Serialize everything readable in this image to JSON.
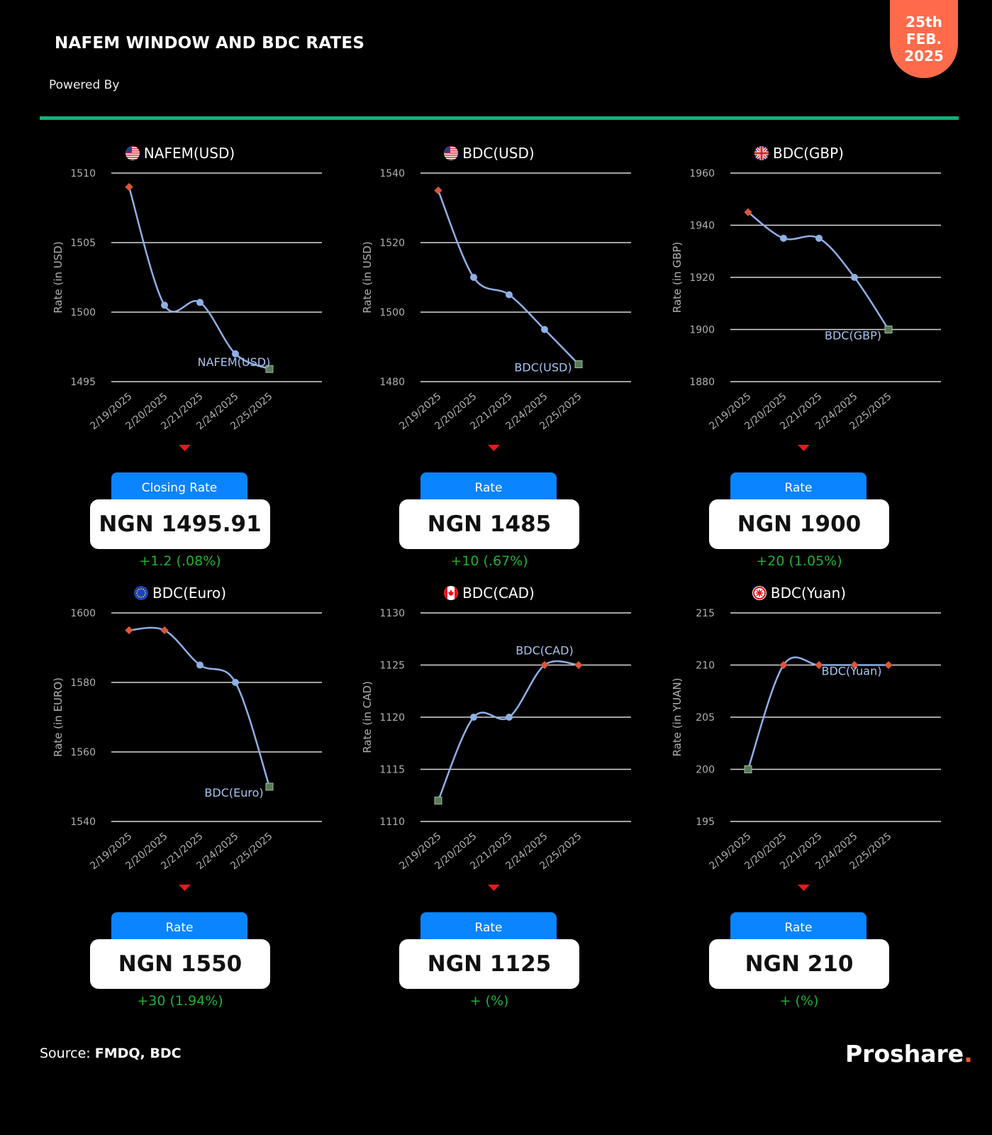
{
  "header": {
    "title": "NAFEM WINDOW AND BDC RATES",
    "powered_by": "Powered By",
    "date_line1": "25th",
    "date_line2": "FEB.",
    "date_line3": "2025"
  },
  "footer": {
    "source_label": "Source:",
    "source_value": "FMDQ, BDC",
    "logo_text": "Proshare",
    "logo_dot": "."
  },
  "colors": {
    "accent_green": "#0db37a",
    "badge": "#ff6b4a",
    "rate_tab": "#0a84ff",
    "line": "#8fb0e6",
    "change": "#1db233"
  },
  "chart_data": [
    {
      "type": "line",
      "title": "NAFEM(USD)",
      "flag": "us-flag-icon",
      "ylabel": "Rate (in USD)",
      "x": [
        "2/19/2025",
        "2/20/2025",
        "2/21/2025",
        "2/24/2025",
        "2/25/2025"
      ],
      "series": [
        {
          "name": "NAFEM(USD)",
          "values": [
            1509,
            1500.5,
            1500.7,
            1497,
            1495.91
          ]
        }
      ],
      "ylim": [
        1495,
        1510
      ],
      "yticks": [
        1495,
        1500,
        1505,
        1510
      ],
      "rate_label": "Closing Rate",
      "rate_value": "NGN 1495.91",
      "change": "+1.2 (.08%)"
    },
    {
      "type": "line",
      "title": "BDC(USD)",
      "flag": "us-flag-icon",
      "ylabel": "Rate (in USD)",
      "x": [
        "2/19/2025",
        "2/20/2025",
        "2/21/2025",
        "2/24/2025",
        "2/25/2025"
      ],
      "series": [
        {
          "name": "BDC(USD)",
          "values": [
            1535,
            1510,
            1505,
            1495,
            1485
          ]
        }
      ],
      "ylim": [
        1480,
        1540
      ],
      "yticks": [
        1480,
        1500,
        1520,
        1540
      ],
      "rate_label": "Rate",
      "rate_value": "NGN 1485",
      "change": "+10 (.67%)"
    },
    {
      "type": "line",
      "title": "BDC(GBP)",
      "flag": "uk-flag-icon",
      "ylabel": "Rate (in GBP)",
      "x": [
        "2/19/2025",
        "2/20/2025",
        "2/21/2025",
        "2/24/2025",
        "2/25/2025"
      ],
      "series": [
        {
          "name": "BDC(GBP)",
          "values": [
            1945,
            1935,
            1935,
            1920,
            1900
          ]
        }
      ],
      "ylim": [
        1880,
        1960
      ],
      "yticks": [
        1880,
        1900,
        1920,
        1940,
        1960
      ],
      "rate_label": "Rate",
      "rate_value": "NGN 1900",
      "change": "+20 (1.05%)"
    },
    {
      "type": "line",
      "title": "BDC(Euro)",
      "flag": "eu-flag-icon",
      "ylabel": "Rate (in EURO)",
      "x": [
        "2/19/2025",
        "2/20/2025",
        "2/21/2025",
        "2/24/2025",
        "2/25/2025"
      ],
      "series": [
        {
          "name": "BDC(Euro)",
          "values": [
            1595,
            1595,
            1585,
            1580,
            1550
          ]
        }
      ],
      "ylim": [
        1540,
        1600
      ],
      "yticks": [
        1540,
        1560,
        1580,
        1600
      ],
      "rate_label": "Rate",
      "rate_value": "NGN 1550",
      "change": "+30 (1.94%)"
    },
    {
      "type": "line",
      "title": "BDC(CAD)",
      "flag": "canada-flag-icon",
      "ylabel": "Rate (in CAD)",
      "x": [
        "2/19/2025",
        "2/20/2025",
        "2/21/2025",
        "2/24/2025",
        "2/25/2025"
      ],
      "series": [
        {
          "name": "BDC(CAD)",
          "values": [
            1112,
            1120,
            1120,
            1125,
            1125
          ]
        }
      ],
      "ylim": [
        1110,
        1130
      ],
      "yticks": [
        1110,
        1115,
        1120,
        1125,
        1130
      ],
      "rate_label": "Rate",
      "rate_value": "NGN 1125",
      "change": "+ (%)"
    },
    {
      "type": "line",
      "title": "BDC(Yuan)",
      "flag": "china-flag-icon",
      "ylabel": "Rate (in YUAN)",
      "x": [
        "2/19/2025",
        "2/20/2025",
        "2/21/2025",
        "2/24/2025",
        "2/25/2025"
      ],
      "series": [
        {
          "name": "BDC(Yuan)",
          "values": [
            200,
            210,
            210,
            210,
            210
          ]
        }
      ],
      "ylim": [
        195,
        215
      ],
      "yticks": [
        195,
        200,
        205,
        210,
        215
      ],
      "rate_label": "Rate",
      "rate_value": "NGN 210",
      "change": "+ (%)"
    }
  ]
}
